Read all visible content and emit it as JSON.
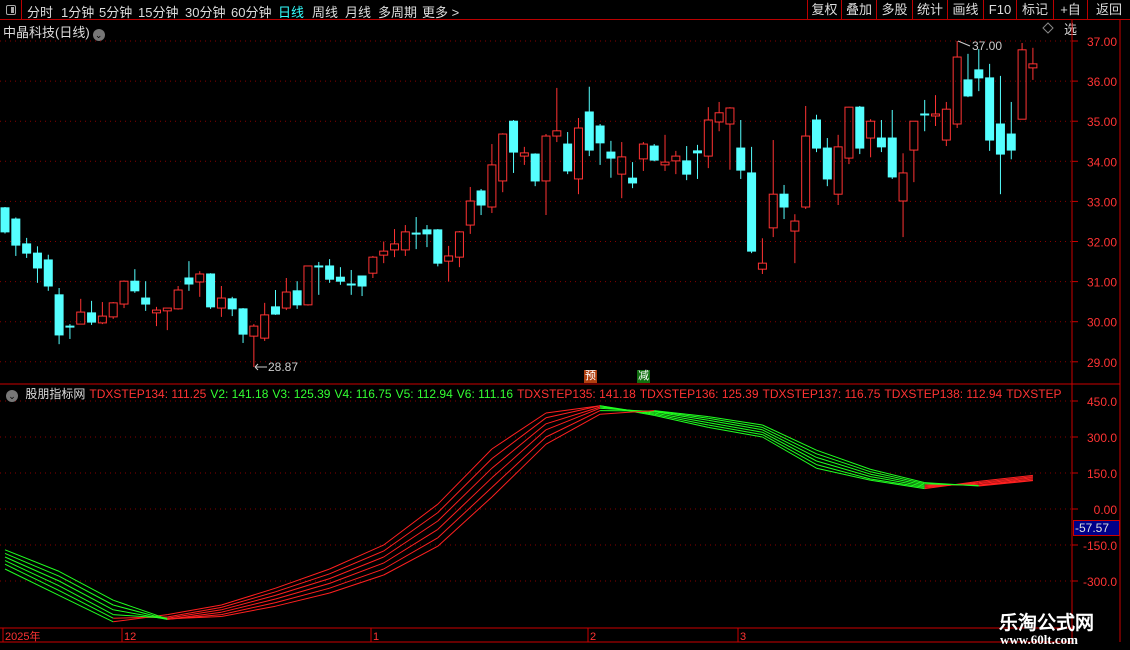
{
  "toolbar": {
    "periods": [
      "分时",
      "1分钟",
      "5分钟",
      "15分钟",
      "30分钟",
      "60分钟",
      "日线",
      "周线",
      "月线",
      "多周期",
      "更多 >"
    ],
    "active_period": "日线",
    "buttons": [
      "复权",
      "叠加",
      "多股",
      "统计",
      "画线",
      "F10",
      "标记",
      "+自选",
      "返回"
    ]
  },
  "main": {
    "title": "中晶科技(日线)",
    "high_label": "37.00",
    "low_label": "28.87"
  },
  "indicator": {
    "name": "股朋指标网",
    "legend": [
      {
        "text": "TDXSTEP134: 111.25",
        "color": "red"
      },
      {
        "text": "V2: 141.18",
        "color": "green"
      },
      {
        "text": "V3: 125.39",
        "color": "green"
      },
      {
        "text": "V4: 116.75",
        "color": "green"
      },
      {
        "text": "V5: 112.94",
        "color": "green"
      },
      {
        "text": "V6: 111.16",
        "color": "green"
      },
      {
        "text": "TDXSTEP135: 141.18",
        "color": "red"
      },
      {
        "text": "TDXSTEP136: 125.39",
        "color": "red"
      },
      {
        "text": "TDXSTEP137: 116.75",
        "color": "red"
      },
      {
        "text": "TDXSTEP138: 112.94",
        "color": "red"
      },
      {
        "text": "TDXSTEP",
        "color": "red"
      }
    ],
    "current_value": "-57.57",
    "badges": [
      "预",
      "减"
    ]
  },
  "watermark": {
    "name": "乐淘公式网",
    "url": "www.60lt.com"
  },
  "colors": {
    "up": "#ff3333",
    "down": "#55ffff",
    "axis": "#cc0000",
    "grid": "#880000",
    "rising_line": "#ff2020",
    "falling_line": "#20ff20"
  },
  "chart_data": [
    {
      "type": "candlestick",
      "title": "中晶科技(日线)",
      "y_ticks": [
        "37.00",
        "36.00",
        "35.00",
        "34.00",
        "33.00",
        "32.00",
        "31.00",
        "30.00",
        "29.00"
      ],
      "ylim": [
        28.6,
        37.5
      ],
      "x_ticks": [
        "2025年",
        "12",
        "1",
        "2",
        "3"
      ],
      "ohlc": [
        [
          32.84,
          32.86,
          32.2,
          32.24
        ],
        [
          32.56,
          32.6,
          31.64,
          31.91
        ],
        [
          31.94,
          32.09,
          31.59,
          31.71
        ],
        [
          31.71,
          31.88,
          30.97,
          31.34
        ],
        [
          31.54,
          31.67,
          30.77,
          30.89
        ],
        [
          30.67,
          30.84,
          29.44,
          29.67
        ],
        [
          29.89,
          29.94,
          29.57,
          29.89
        ],
        [
          29.94,
          30.57,
          29.94,
          30.24
        ],
        [
          30.22,
          30.52,
          29.92,
          29.99
        ],
        [
          29.97,
          30.49,
          29.94,
          30.14
        ],
        [
          30.12,
          30.49,
          30.07,
          30.47
        ],
        [
          30.44,
          31.03,
          30.34,
          31.01
        ],
        [
          31.01,
          31.31,
          30.72,
          30.77
        ],
        [
          30.59,
          31.01,
          30.27,
          30.44
        ],
        [
          30.22,
          30.37,
          29.89,
          30.29
        ],
        [
          30.27,
          30.34,
          29.79,
          30.34
        ],
        [
          30.32,
          30.89,
          30.3,
          30.79
        ],
        [
          31.09,
          31.51,
          30.77,
          30.94
        ],
        [
          30.99,
          31.26,
          30.62,
          31.19
        ],
        [
          31.19,
          31.21,
          30.32,
          30.37
        ],
        [
          30.34,
          30.89,
          30.12,
          30.59
        ],
        [
          30.57,
          30.62,
          30.14,
          30.32
        ],
        [
          30.32,
          30.34,
          29.47,
          29.69
        ],
        [
          29.64,
          29.94,
          28.87,
          29.89
        ],
        [
          29.59,
          30.47,
          29.52,
          30.17
        ],
        [
          30.37,
          30.79,
          30.17,
          30.19
        ],
        [
          30.34,
          31.09,
          30.29,
          30.74
        ],
        [
          30.77,
          31.01,
          30.32,
          30.42
        ],
        [
          30.42,
          31.39,
          30.4,
          31.39
        ],
        [
          31.39,
          31.49,
          30.67,
          31.39
        ],
        [
          31.39,
          31.56,
          30.97,
          31.06
        ],
        [
          31.11,
          31.36,
          30.92,
          31.01
        ],
        [
          30.94,
          31.29,
          30.67,
          30.94
        ],
        [
          31.14,
          31.14,
          30.64,
          30.89
        ],
        [
          31.21,
          31.64,
          31.09,
          31.61
        ],
        [
          31.66,
          32.0,
          31.46,
          31.76
        ],
        [
          31.79,
          32.31,
          31.61,
          31.94
        ],
        [
          31.79,
          32.41,
          31.64,
          32.24
        ],
        [
          32.21,
          32.61,
          31.81,
          32.21
        ],
        [
          32.29,
          32.41,
          31.86,
          32.19
        ],
        [
          32.29,
          32.31,
          31.38,
          31.46
        ],
        [
          31.51,
          31.89,
          31.0,
          31.64
        ],
        [
          31.61,
          32.26,
          31.36,
          32.24
        ],
        [
          32.41,
          33.36,
          32.19,
          33.01
        ],
        [
          33.26,
          33.31,
          32.66,
          32.91
        ],
        [
          32.86,
          34.43,
          32.71,
          33.91
        ],
        [
          33.51,
          34.7,
          33.23,
          34.68
        ],
        [
          35.0,
          35.03,
          33.71,
          34.23
        ],
        [
          34.13,
          34.36,
          33.91,
          34.21
        ],
        [
          34.18,
          34.2,
          33.38,
          33.51
        ],
        [
          33.51,
          34.68,
          32.66,
          34.63
        ],
        [
          34.63,
          35.83,
          34.48,
          34.76
        ],
        [
          34.43,
          34.73,
          33.68,
          33.76
        ],
        [
          33.56,
          35.08,
          33.18,
          34.83
        ],
        [
          35.23,
          35.86,
          34.13,
          34.28
        ],
        [
          34.88,
          34.93,
          33.91,
          34.46
        ],
        [
          34.23,
          34.51,
          33.59,
          34.08
        ],
        [
          33.68,
          34.48,
          33.08,
          34.11
        ],
        [
          33.58,
          33.98,
          33.33,
          33.46
        ],
        [
          34.06,
          34.48,
          33.76,
          34.43
        ],
        [
          34.38,
          34.43,
          34.0,
          34.03
        ],
        [
          33.91,
          34.66,
          33.76,
          33.98
        ],
        [
          34.01,
          34.26,
          33.68,
          34.13
        ],
        [
          34.01,
          34.38,
          33.53,
          33.68
        ],
        [
          34.26,
          34.41,
          33.56,
          34.21
        ],
        [
          34.13,
          35.35,
          33.83,
          35.03
        ],
        [
          34.98,
          35.48,
          34.75,
          35.21
        ],
        [
          34.93,
          35.35,
          33.79,
          35.33
        ],
        [
          34.33,
          35.03,
          33.56,
          33.78
        ],
        [
          33.71,
          34.36,
          31.71,
          31.76
        ],
        [
          31.31,
          32.08,
          31.19,
          31.46
        ],
        [
          32.34,
          34.53,
          32.11,
          33.18
        ],
        [
          33.18,
          33.41,
          32.56,
          32.86
        ],
        [
          32.26,
          32.68,
          31.46,
          32.51
        ],
        [
          32.86,
          35.38,
          32.81,
          34.63
        ],
        [
          35.03,
          35.16,
          34.23,
          34.33
        ],
        [
          34.33,
          34.58,
          33.38,
          33.56
        ],
        [
          33.18,
          34.66,
          32.91,
          34.36
        ],
        [
          34.08,
          35.36,
          33.93,
          35.35
        ],
        [
          35.35,
          35.38,
          34.18,
          34.33
        ],
        [
          34.58,
          35.05,
          34.1,
          35.0
        ],
        [
          34.58,
          35.03,
          34.23,
          34.36
        ],
        [
          34.58,
          35.28,
          33.56,
          33.61
        ],
        [
          33.01,
          34.2,
          32.11,
          33.71
        ],
        [
          34.28,
          35.0,
          33.48,
          35.0
        ],
        [
          35.18,
          35.53,
          34.75,
          35.18
        ],
        [
          35.13,
          35.65,
          34.88,
          35.18
        ],
        [
          34.53,
          35.48,
          34.38,
          35.3
        ],
        [
          34.93,
          37.0,
          34.83,
          36.6
        ],
        [
          36.03,
          36.68,
          35.6,
          35.63
        ],
        [
          36.28,
          36.8,
          35.75,
          36.08
        ],
        [
          36.08,
          36.43,
          34.26,
          34.53
        ],
        [
          34.93,
          36.13,
          33.18,
          34.18
        ],
        [
          34.68,
          35.48,
          34.05,
          34.28
        ],
        [
          35.05,
          36.95,
          35.05,
          36.78
        ],
        [
          36.33,
          36.83,
          36.03,
          36.43
        ]
      ]
    },
    {
      "type": "line",
      "title": "股朋指标网",
      "y_ticks": [
        "450.0",
        "300.0",
        "150.0",
        "0.00",
        "-150.0",
        "-300.0"
      ],
      "ylim": [
        -500,
        480
      ],
      "x_index": [
        0,
        5,
        10,
        15,
        20,
        25,
        30,
        35,
        40,
        45,
        50,
        55,
        60,
        65,
        70,
        75,
        80,
        85,
        90,
        95
      ],
      "series": [
        {
          "name": "TDXSTEP134",
          "values": [
            -250,
            -360,
            -470,
            -440,
            -400,
            -330,
            -250,
            -150,
            20,
            250,
            400,
            430,
            390,
            340,
            300,
            170,
            120,
            85,
            115,
            140
          ]
        },
        {
          "name": "V2",
          "values": [
            -230,
            -340,
            -455,
            -450,
            -410,
            -345,
            -270,
            -175,
            -15,
            210,
            380,
            430,
            395,
            350,
            310,
            185,
            125,
            90,
            110,
            135
          ]
        },
        {
          "name": "V3",
          "values": [
            -215,
            -320,
            -440,
            -455,
            -420,
            -360,
            -290,
            -200,
            -50,
            170,
            355,
            425,
            400,
            360,
            320,
            200,
            135,
            95,
            105,
            130
          ]
        },
        {
          "name": "V4",
          "values": [
            -200,
            -300,
            -420,
            -460,
            -430,
            -375,
            -310,
            -225,
            -85,
            130,
            330,
            420,
            405,
            370,
            330,
            215,
            145,
            100,
            100,
            125
          ]
        },
        {
          "name": "V5",
          "values": [
            -185,
            -280,
            -400,
            -460,
            -440,
            -390,
            -330,
            -250,
            -120,
            90,
            300,
            410,
            408,
            378,
            340,
            230,
            155,
            105,
            98,
            120
          ]
        },
        {
          "name": "V6",
          "values": [
            -170,
            -260,
            -380,
            -458,
            -448,
            -405,
            -350,
            -275,
            -155,
            50,
            270,
            395,
            410,
            385,
            350,
            245,
            165,
            110,
            96,
            118
          ]
        }
      ]
    }
  ]
}
